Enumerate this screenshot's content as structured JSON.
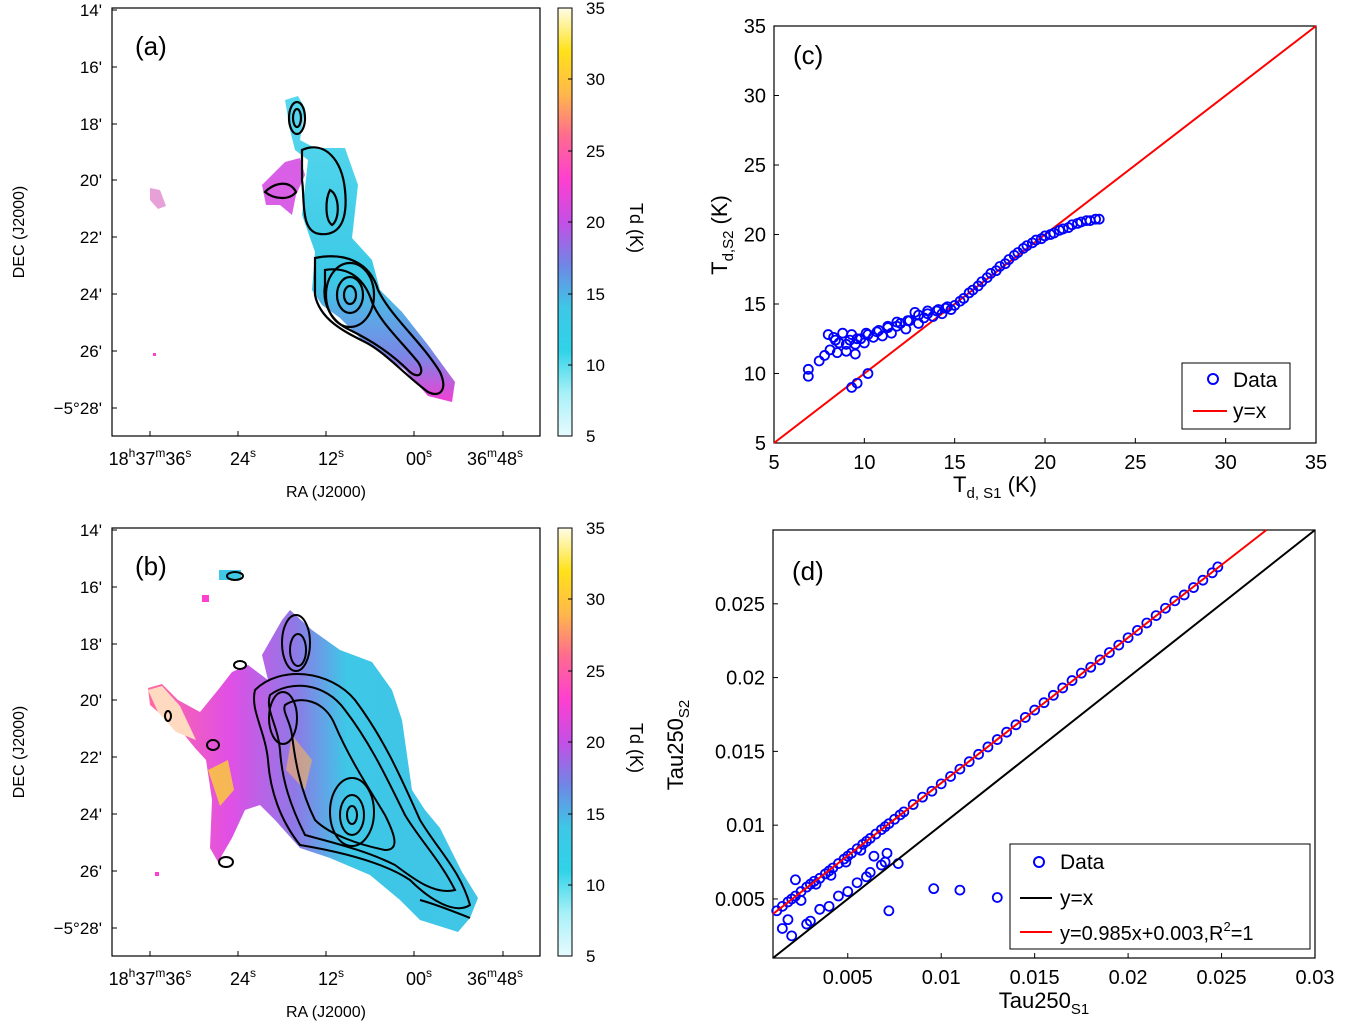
{
  "colors": {
    "data_blue": "#0000ff",
    "line_red": "#ff0000",
    "line_black": "#000000",
    "contour": "#000000",
    "colormap": [
      "#e6fbff",
      "#a8f0f7",
      "#2fd3e8",
      "#3ec7e6",
      "#6f86e6",
      "#c44fe6",
      "#ff3fd0",
      "#ff6a90",
      "#ffb84a",
      "#ffe21a",
      "#fffde8"
    ]
  },
  "chart_data": [
    {
      "panel": "(a)",
      "type": "heatmap",
      "xlabel": "RA (J2000)",
      "ylabel": "DEC (J2000)",
      "x_ticks": [
        {
          "h": "18",
          "hu": "h",
          "m": "37",
          "mu": "m",
          "s": "36",
          "su": "s"
        },
        {
          "h": "",
          "hu": "",
          "m": "",
          "mu": "",
          "s": "24",
          "su": "s"
        },
        {
          "h": "",
          "hu": "",
          "m": "",
          "mu": "",
          "s": "12",
          "su": "s"
        },
        {
          "h": "",
          "hu": "",
          "m": "",
          "mu": "",
          "s": "00",
          "su": "s"
        },
        {
          "h": "",
          "hu": "",
          "m": "36",
          "mu": "m",
          "s": "48",
          "su": "s"
        }
      ],
      "y_ticks": [
        "14'",
        "16'",
        "18'",
        "20'",
        "22'",
        "24'",
        "26'",
        "−5°28'"
      ],
      "colorbar": {
        "label": "Td (K)",
        "range": [
          5,
          35
        ],
        "ticks": [
          5,
          10,
          15,
          20,
          25,
          30,
          35
        ]
      }
    },
    {
      "panel": "(b)",
      "type": "heatmap",
      "xlabel": "RA (J2000)",
      "ylabel": "DEC (J2000)",
      "x_ticks": [
        {
          "h": "18",
          "hu": "h",
          "m": "37",
          "mu": "m",
          "s": "36",
          "su": "s"
        },
        {
          "h": "",
          "hu": "",
          "m": "",
          "mu": "",
          "s": "24",
          "su": "s"
        },
        {
          "h": "",
          "hu": "",
          "m": "",
          "mu": "",
          "s": "12",
          "su": "s"
        },
        {
          "h": "",
          "hu": "",
          "m": "",
          "mu": "",
          "s": "00",
          "su": "s"
        },
        {
          "h": "",
          "hu": "",
          "m": "36",
          "mu": "m",
          "s": "48",
          "su": "s"
        }
      ],
      "y_ticks": [
        "14'",
        "16'",
        "18'",
        "20'",
        "22'",
        "24'",
        "26'",
        "−5°28'"
      ],
      "colorbar": {
        "label": "Td (K)",
        "range": [
          5,
          35
        ],
        "ticks": [
          5,
          10,
          15,
          20,
          25,
          30,
          35
        ]
      }
    },
    {
      "panel": "(c)",
      "type": "scatter",
      "xlabel": {
        "main": "T",
        "sub": "d, S1",
        "unit": " (K)"
      },
      "ylabel": {
        "main": "T",
        "sub": "d,S2",
        "unit": " (K)"
      },
      "xlim": [
        5,
        35
      ],
      "ylim": [
        5,
        35
      ],
      "xticks": [
        5,
        10,
        15,
        20,
        25,
        30,
        35
      ],
      "yticks": [
        5,
        10,
        15,
        20,
        25,
        30,
        35
      ],
      "legend": {
        "position": "bottom-right",
        "entries": [
          "Data",
          "y=x"
        ]
      },
      "series": [
        {
          "name": "Data",
          "marker": "circle",
          "x": [
            6.9,
            6.9,
            7.5,
            7.8,
            8.0,
            8.1,
            8.3,
            8.5,
            8.6,
            8.8,
            9.0,
            9.2,
            9.3,
            9.5,
            9.5,
            9.8,
            10.0,
            10.2,
            10.2,
            10.5,
            10.8,
            11.0,
            11.3,
            11.5,
            11.8,
            12.0,
            12.3,
            12.5,
            12.8,
            13.0,
            13.3,
            13.5,
            13.8,
            14.0,
            14.3,
            14.5,
            14.8,
            15.0,
            15.3,
            15.5,
            15.8,
            16.0,
            16.3,
            16.5,
            16.8,
            17.0,
            17.3,
            17.5,
            17.8,
            18.0,
            18.3,
            18.5,
            18.8,
            19.0,
            19.3,
            19.5,
            19.8,
            20.0,
            20.3,
            20.5,
            20.8,
            21.0,
            21.3,
            21.5,
            21.8,
            22.0,
            22.3,
            22.5,
            22.8,
            23.0,
            8.4,
            9.0,
            9.6,
            10.1,
            10.7,
            11.3,
            11.8,
            12.4,
            13.0,
            13.5,
            14.1,
            14.6,
            9.3,
            9.6
          ],
          "y": [
            9.8,
            10.3,
            10.9,
            11.3,
            12.8,
            11.7,
            12.6,
            11.5,
            12.2,
            12.9,
            11.6,
            12.4,
            12.8,
            12.1,
            11.4,
            12.5,
            12.2,
            12.8,
            10.0,
            12.6,
            13.1,
            12.7,
            13.3,
            12.9,
            13.4,
            13.6,
            13.2,
            13.8,
            14.4,
            13.6,
            14.0,
            14.5,
            14.1,
            14.5,
            14.3,
            14.7,
            14.6,
            14.9,
            15.2,
            15.4,
            15.8,
            16.0,
            16.3,
            16.6,
            16.9,
            17.2,
            17.4,
            17.7,
            17.9,
            18.2,
            18.5,
            18.7,
            19.0,
            19.2,
            19.4,
            19.6,
            19.7,
            19.9,
            20.0,
            20.1,
            20.3,
            20.4,
            20.5,
            20.7,
            20.8,
            20.9,
            21.0,
            21.0,
            21.1,
            21.1,
            12.4,
            12.1,
            12.5,
            12.9,
            13.0,
            13.4,
            13.7,
            13.8,
            14.2,
            14.3,
            14.6,
            14.8,
            9.0,
            9.3
          ]
        },
        {
          "name": "y=x",
          "type": "line",
          "x": [
            5,
            35
          ],
          "y": [
            5,
            35
          ]
        }
      ]
    },
    {
      "panel": "(d)",
      "type": "scatter",
      "xlabel": {
        "main": "Tau250",
        "sub": "S1",
        "unit": ""
      },
      "ylabel": {
        "main": "Tau250",
        "sub": "S2",
        "unit": ""
      },
      "xlim": [
        0.001,
        0.03
      ],
      "ylim": [
        0.001,
        0.03
      ],
      "xticks": [
        0.005,
        0.01,
        0.015,
        0.02,
        0.025,
        0.03
      ],
      "yticks": [
        0.005,
        0.01,
        0.015,
        0.02,
        0.025
      ],
      "legend": {
        "position": "bottom-right",
        "entries": [
          "Data",
          "y=x",
          "y=0.985x+0.003,R",
          "2",
          "=1"
        ]
      },
      "series": [
        {
          "name": "Data",
          "marker": "circle",
          "x": [
            0.0012,
            0.0015,
            0.0018,
            0.002,
            0.0022,
            0.0025,
            0.0028,
            0.003,
            0.0032,
            0.0035,
            0.0038,
            0.004,
            0.0042,
            0.0045,
            0.0048,
            0.005,
            0.0052,
            0.0055,
            0.0058,
            0.006,
            0.0062,
            0.0065,
            0.0068,
            0.007,
            0.0072,
            0.0075,
            0.0078,
            0.008,
            0.0085,
            0.009,
            0.0095,
            0.01,
            0.0105,
            0.011,
            0.0115,
            0.012,
            0.0125,
            0.013,
            0.0135,
            0.014,
            0.0145,
            0.015,
            0.0155,
            0.016,
            0.0165,
            0.017,
            0.0175,
            0.018,
            0.0185,
            0.019,
            0.0195,
            0.02,
            0.0205,
            0.021,
            0.0215,
            0.022,
            0.0225,
            0.023,
            0.0235,
            0.024,
            0.0245,
            0.0248,
            0.002,
            0.003,
            0.004,
            0.005,
            0.006,
            0.007,
            0.0072,
            0.0096,
            0.011,
            0.013,
            0.0022,
            0.0028,
            0.0035,
            0.0045,
            0.0055,
            0.0062,
            0.0068,
            0.0015,
            0.0018,
            0.0025,
            0.0033,
            0.0041,
            0.0049,
            0.0057,
            0.0064,
            0.0071,
            0.0077
          ],
          "y": [
            0.0042,
            0.0045,
            0.0048,
            0.005,
            0.0052,
            0.0055,
            0.0058,
            0.006,
            0.0062,
            0.0064,
            0.0067,
            0.0069,
            0.0071,
            0.0074,
            0.0077,
            0.0079,
            0.0081,
            0.0084,
            0.0087,
            0.0089,
            0.0091,
            0.0094,
            0.0097,
            0.0099,
            0.0101,
            0.0104,
            0.0107,
            0.0109,
            0.0114,
            0.0119,
            0.0123,
            0.0128,
            0.0133,
            0.0138,
            0.0143,
            0.0148,
            0.0153,
            0.0158,
            0.0163,
            0.0168,
            0.0173,
            0.0178,
            0.0183,
            0.0188,
            0.0193,
            0.0198,
            0.0203,
            0.0207,
            0.0212,
            0.0217,
            0.0222,
            0.0227,
            0.0232,
            0.0237,
            0.0242,
            0.0247,
            0.0252,
            0.0256,
            0.0261,
            0.0266,
            0.0271,
            0.0275,
            0.0025,
            0.0035,
            0.0045,
            0.0055,
            0.0065,
            0.0075,
            0.0042,
            0.0057,
            0.0056,
            0.0051,
            0.0063,
            0.0033,
            0.0043,
            0.0052,
            0.0061,
            0.0068,
            0.0073,
            0.003,
            0.0036,
            0.0049,
            0.006,
            0.0066,
            0.0075,
            0.0083,
            0.0079,
            0.0081,
            0.0074
          ]
        },
        {
          "name": "y=x",
          "type": "line",
          "x": [
            0.001,
            0.03
          ],
          "y": [
            0.001,
            0.03
          ]
        },
        {
          "name": "y=0.985x+0.003,R",
          "type": "line",
          "x": [
            0.001,
            0.0274
          ],
          "y": [
            0.003985,
            0.03
          ]
        }
      ]
    }
  ]
}
